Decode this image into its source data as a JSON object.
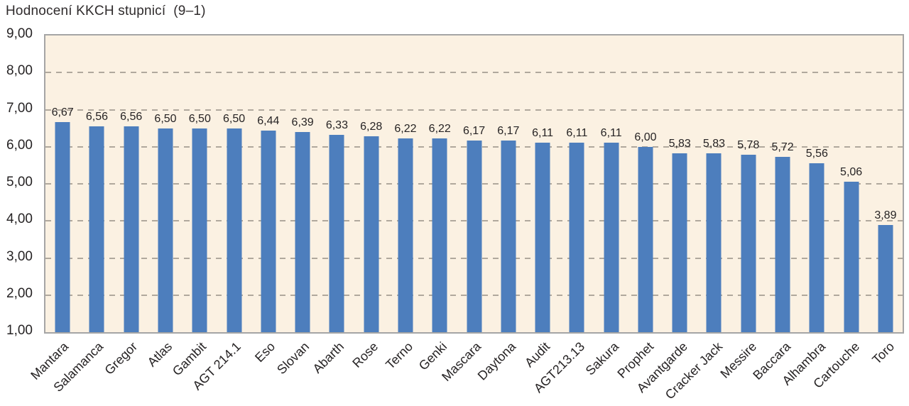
{
  "chart_data": {
    "type": "bar",
    "title": "Hodnocení KKCH stupnicí  (9–1)",
    "categories": [
      "Mantara",
      "Salamanca",
      "Gregor",
      "Atlas",
      "Gambit",
      "AGT 214.1",
      "Eso",
      "Slovan",
      "Abarth",
      "Rose",
      "Terno",
      "Genki",
      "Mascara",
      "Daytona",
      "Audit",
      "AGT213.13",
      "Sakura",
      "Prophet",
      "Avantgarde",
      "Cracker Jack",
      "Messire",
      "Baccara",
      "Alhambra",
      "Cartouche",
      "Toro"
    ],
    "values": [
      6.67,
      6.56,
      6.56,
      6.5,
      6.5,
      6.5,
      6.44,
      6.39,
      6.33,
      6.28,
      6.22,
      6.22,
      6.17,
      6.17,
      6.11,
      6.11,
      6.11,
      6.0,
      5.83,
      5.83,
      5.78,
      5.72,
      5.56,
      5.06,
      3.89
    ],
    "value_labels": [
      "6,67",
      "6,56",
      "6,56",
      "6,50",
      "6,50",
      "6,50",
      "6,44",
      "6,39",
      "6,33",
      "6,28",
      "6,22",
      "6,22",
      "6,17",
      "6,17",
      "6,11",
      "6,11",
      "6,11",
      "6,00",
      "5,83",
      "5,83",
      "5,78",
      "5,72",
      "5,56",
      "5,06",
      "3,89"
    ],
    "y_tick_labels": [
      "9,00",
      "8,00",
      "7,00",
      "6,00",
      "5,00",
      "4,00",
      "3,00",
      "2,00",
      "1,00"
    ],
    "ylim": [
      1,
      9
    ],
    "xlabel": "",
    "ylabel": "",
    "legend": "none",
    "grid": "horizontal-dashed",
    "colors": {
      "bar": "#4d7ebd",
      "plot_background": "#fbf1e2",
      "plot_border": "#a5a5a5",
      "gridline": "#b0a89d",
      "text": "#262324"
    }
  }
}
